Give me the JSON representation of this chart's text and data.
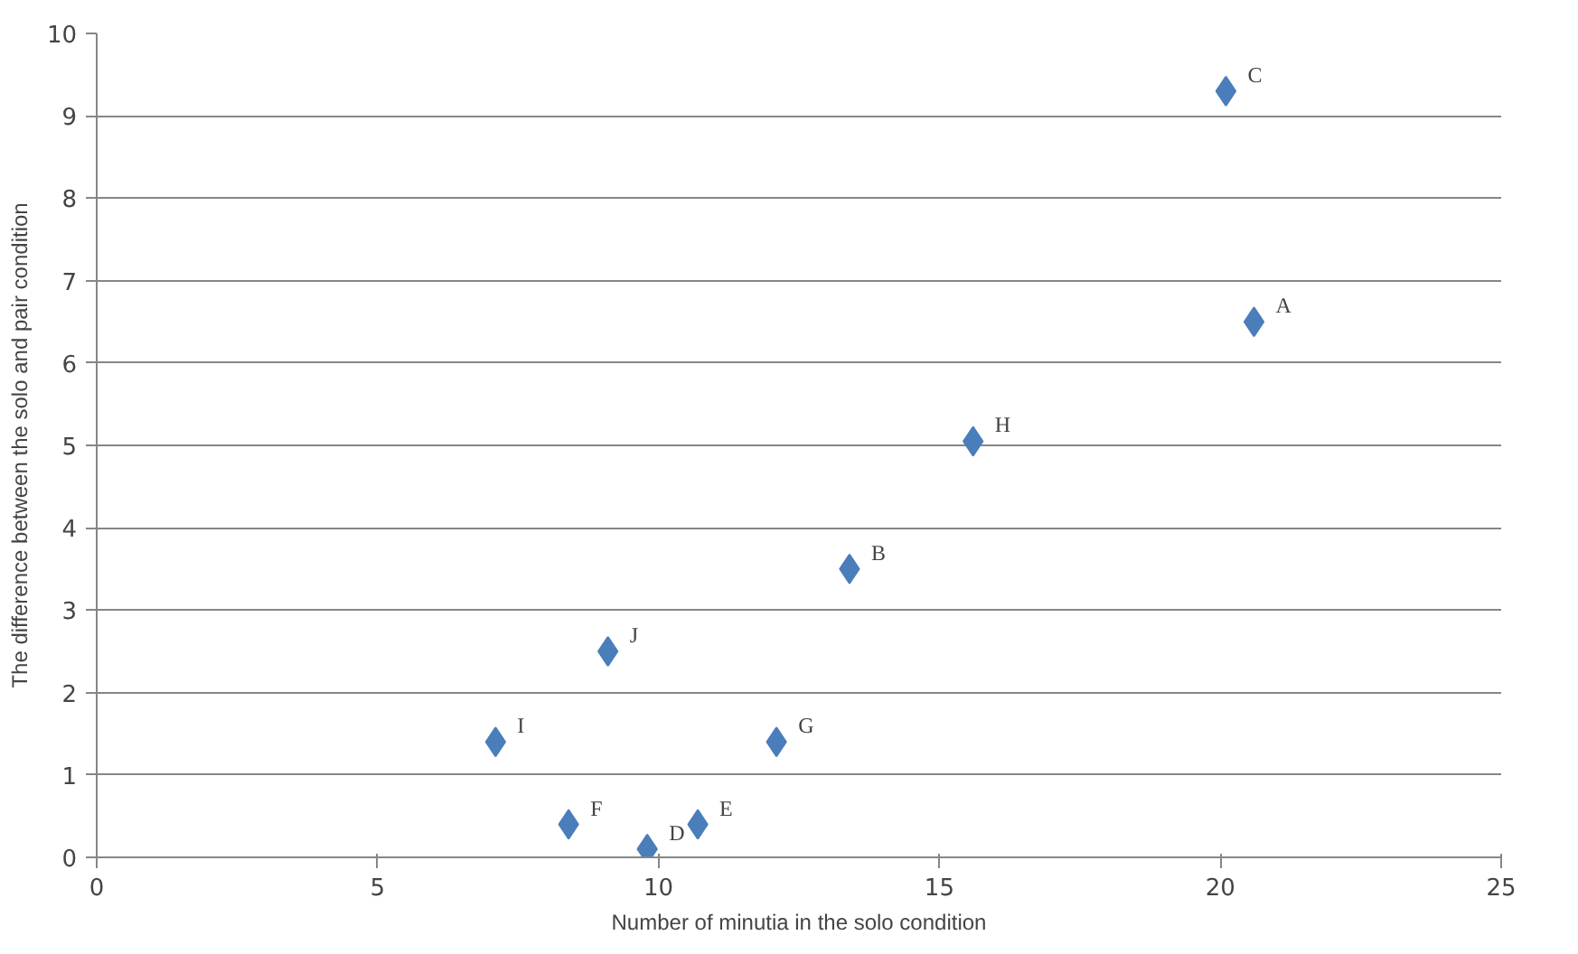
{
  "chart_data": {
    "type": "scatter",
    "xlabel": "Number of minutia in the solo condition",
    "ylabel": "The difference between the solo and pair condition",
    "x": [
      20.6,
      13.4,
      20.1,
      9.8,
      10.7,
      8.4,
      12.1,
      15.6,
      7.1,
      9.1
    ],
    "series": [
      {
        "color": "#4a7ebb",
        "values": [
          6.5,
          3.5,
          9.3,
          0.1,
          0.4,
          0.4,
          1.4,
          5.05,
          1.4,
          2.5
        ]
      }
    ],
    "annotations": [
      {
        "text": "A",
        "x": 20.6,
        "y": 6.5
      },
      {
        "text": "B",
        "x": 13.4,
        "y": 3.5
      },
      {
        "text": "C",
        "x": 20.1,
        "y": 9.3
      },
      {
        "text": "D",
        "x": 9.8,
        "y": 0.1
      },
      {
        "text": "E",
        "x": 10.7,
        "y": 0.4
      },
      {
        "text": "F",
        "x": 8.4,
        "y": 0.4
      },
      {
        "text": "G",
        "x": 12.1,
        "y": 1.4
      },
      {
        "text": "H",
        "x": 15.6,
        "y": 5.05
      },
      {
        "text": "I",
        "x": 7.1,
        "y": 1.4
      },
      {
        "text": "J",
        "x": 9.1,
        "y": 2.5
      }
    ],
    "xlim": [
      0,
      25
    ],
    "xticks": [
      0,
      5,
      10,
      15,
      20,
      25
    ],
    "ylim": [
      0,
      10
    ],
    "yticks": [
      0,
      1,
      2,
      3,
      4,
      5,
      6,
      7,
      8,
      9,
      10
    ],
    "grid": "y",
    "marker": "diamond"
  }
}
